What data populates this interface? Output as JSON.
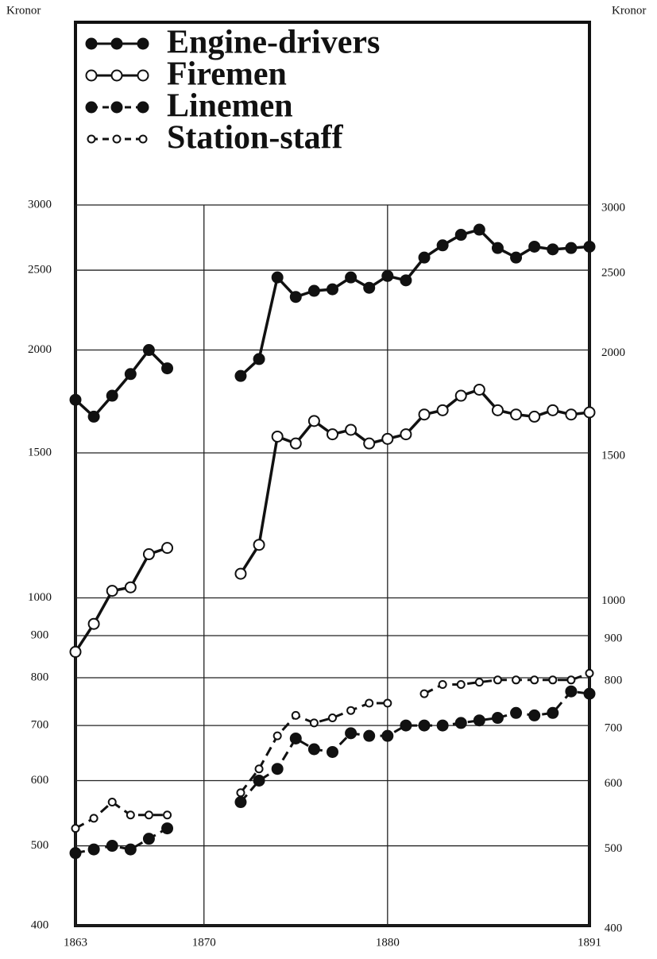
{
  "chart_data": {
    "type": "line",
    "y_label": "Kronor",
    "log_scale": true,
    "grid": true,
    "legend": "upper left",
    "x": [
      1863,
      1864,
      1865,
      1866,
      1867,
      1868,
      1869,
      1870,
      1871,
      1872,
      1873,
      1874,
      1875,
      1876,
      1877,
      1878,
      1879,
      1880,
      1881,
      1882,
      1883,
      1884,
      1885,
      1886,
      1887,
      1888,
      1889,
      1890,
      1891
    ],
    "xlim": [
      1863,
      1891
    ],
    "xticks": [
      1863,
      1870,
      1880,
      1891
    ],
    "ylim": [
      400,
      3000
    ],
    "yticks": [
      400,
      500,
      600,
      700,
      800,
      900,
      1000,
      1500,
      2000,
      2500,
      3000
    ],
    "series": [
      {
        "name": "Engine-drivers",
        "color": "#111111",
        "dashed": false,
        "marker": "filled",
        "values": [
          1740,
          1660,
          1760,
          1870,
          2000,
          1900,
          null,
          null,
          null,
          1860,
          1950,
          2450,
          2320,
          2360,
          2370,
          2450,
          2380,
          2460,
          2430,
          2590,
          2680,
          2760,
          2800,
          2660,
          2590,
          2670,
          2650,
          2660,
          2670
        ]
      },
      {
        "name": "Firemen",
        "color": "#111111",
        "dashed": false,
        "marker": "open",
        "values": [
          860,
          930,
          1020,
          1030,
          1130,
          1150,
          null,
          null,
          null,
          1070,
          1160,
          1570,
          1540,
          1640,
          1580,
          1600,
          1540,
          1560,
          1580,
          1670,
          1690,
          1760,
          1790,
          1690,
          1670,
          1660,
          1690,
          1670,
          1680
        ]
      },
      {
        "name": "Linemen",
        "color": "#111111",
        "dashed": true,
        "marker": "filled",
        "values": [
          490,
          495,
          500,
          495,
          510,
          525,
          null,
          null,
          null,
          565,
          600,
          620,
          675,
          655,
          650,
          685,
          680,
          680,
          700,
          700,
          700,
          705,
          710,
          715,
          725,
          720,
          725,
          770,
          765
        ]
      },
      {
        "name": "Station-staff",
        "color": "#111111",
        "dashed": true,
        "marker": "open",
        "values": [
          525,
          540,
          565,
          545,
          545,
          545,
          null,
          null,
          null,
          580,
          620,
          680,
          720,
          705,
          715,
          730,
          745,
          745,
          null,
          765,
          785,
          785,
          790,
          795,
          795,
          795,
          795,
          795,
          810
        ]
      }
    ]
  }
}
